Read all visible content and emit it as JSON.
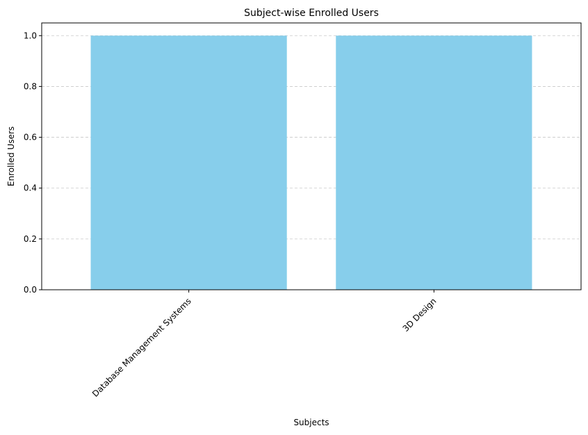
{
  "chart_data": {
    "type": "bar",
    "title": "Subject-wise Enrolled Users",
    "xlabel": "Subjects",
    "ylabel": "Enrolled Users",
    "categories": [
      "Database Management Systems",
      "3D Design"
    ],
    "values": [
      1.0,
      1.0
    ],
    "ylim": [
      0,
      1.05
    ],
    "yticks": [
      "0.0",
      "0.2",
      "0.4",
      "0.6",
      "0.8",
      "1.0"
    ],
    "grid": "y-dashed",
    "bar_color": "#87ceeb",
    "xtick_rotation": 45
  }
}
